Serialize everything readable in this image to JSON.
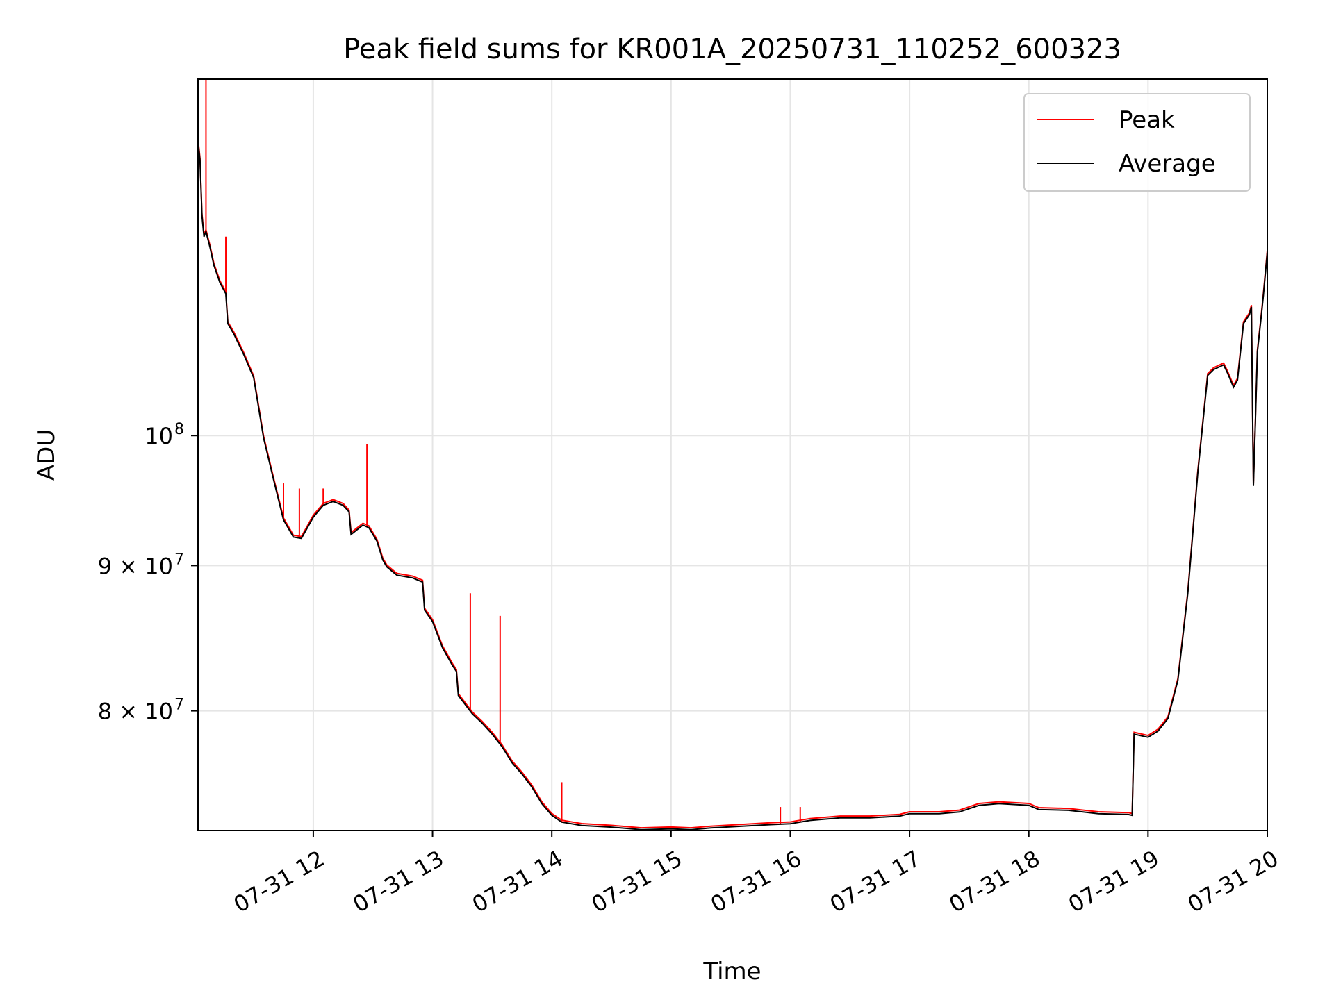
{
  "chart_data": {
    "type": "line",
    "title": "Peak field sums for KR001A_20250731_110252_600323",
    "xlabel": "Time",
    "ylabel": "ADU",
    "y_scale": "log",
    "grid": true,
    "legend_position": "top-right",
    "xlim": [
      "2025-07-31T11:02",
      "2025-07-31T20:00"
    ],
    "ylim": [
      72600000,
      133500000
    ],
    "x_ticks": [
      {
        "value": "2025-07-31T12:00",
        "label": "07-31 12"
      },
      {
        "value": "2025-07-31T13:00",
        "label": "07-31 13"
      },
      {
        "value": "2025-07-31T14:00",
        "label": "07-31 14"
      },
      {
        "value": "2025-07-31T15:00",
        "label": "07-31 15"
      },
      {
        "value": "2025-07-31T16:00",
        "label": "07-31 16"
      },
      {
        "value": "2025-07-31T17:00",
        "label": "07-31 17"
      },
      {
        "value": "2025-07-31T18:00",
        "label": "07-31 18"
      },
      {
        "value": "2025-07-31T19:00",
        "label": "07-31 19"
      },
      {
        "value": "2025-07-31T20:00",
        "label": "07-31 20"
      }
    ],
    "y_ticks": [
      {
        "value": 80000000,
        "base": "8 × 10",
        "exp": "7"
      },
      {
        "value": 90000000,
        "base": "9 × 10",
        "exp": "7"
      },
      {
        "value": 100000000,
        "base": "10",
        "exp": "8"
      }
    ],
    "series": [
      {
        "name": "Average",
        "color": "#000000",
        "points": [
          [
            "2025-07-31T11:02",
            127000000
          ],
          [
            "2025-07-31T11:03",
            125000000
          ],
          [
            "2025-07-31T11:04",
            119500000
          ],
          [
            "2025-07-31T11:05",
            117500000
          ],
          [
            "2025-07-31T11:06",
            118000000
          ],
          [
            "2025-07-31T11:08",
            116500000
          ],
          [
            "2025-07-31T11:10",
            114800000
          ],
          [
            "2025-07-31T11:13",
            113200000
          ],
          [
            "2025-07-31T11:16",
            112200000
          ],
          [
            "2025-07-31T11:17",
            109500000
          ],
          [
            "2025-07-31T11:20",
            108600000
          ],
          [
            "2025-07-31T11:25",
            106800000
          ],
          [
            "2025-07-31T11:30",
            104800000
          ],
          [
            "2025-07-31T11:35",
            99800000
          ],
          [
            "2025-07-31T11:40",
            96500000
          ],
          [
            "2025-07-31T11:45",
            93400000
          ],
          [
            "2025-07-31T11:50",
            92100000
          ],
          [
            "2025-07-31T11:54",
            92000000
          ],
          [
            "2025-07-31T12:00",
            93600000
          ],
          [
            "2025-07-31T12:05",
            94500000
          ],
          [
            "2025-07-31T12:10",
            94800000
          ],
          [
            "2025-07-31T12:15",
            94500000
          ],
          [
            "2025-07-31T12:18",
            94000000
          ],
          [
            "2025-07-31T12:19",
            92300000
          ],
          [
            "2025-07-31T12:25",
            93000000
          ],
          [
            "2025-07-31T12:28",
            92800000
          ],
          [
            "2025-07-31T12:32",
            91800000
          ],
          [
            "2025-07-31T12:35",
            90400000
          ],
          [
            "2025-07-31T12:37",
            89900000
          ],
          [
            "2025-07-31T12:42",
            89300000
          ],
          [
            "2025-07-31T12:50",
            89100000
          ],
          [
            "2025-07-31T12:55",
            88800000
          ],
          [
            "2025-07-31T12:56",
            86800000
          ],
          [
            "2025-07-31T13:00",
            86000000
          ],
          [
            "2025-07-31T13:05",
            84200000
          ],
          [
            "2025-07-31T13:10",
            83000000
          ],
          [
            "2025-07-31T13:12",
            82600000
          ],
          [
            "2025-07-31T13:13",
            81000000
          ],
          [
            "2025-07-31T13:20",
            79800000
          ],
          [
            "2025-07-31T13:25",
            79200000
          ],
          [
            "2025-07-31T13:30",
            78500000
          ],
          [
            "2025-07-31T13:35",
            77700000
          ],
          [
            "2025-07-31T13:40",
            76700000
          ],
          [
            "2025-07-31T13:45",
            76000000
          ],
          [
            "2025-07-31T13:50",
            75200000
          ],
          [
            "2025-07-31T13:55",
            74200000
          ],
          [
            "2025-07-31T14:00",
            73500000
          ],
          [
            "2025-07-31T14:05",
            73100000
          ],
          [
            "2025-07-31T14:15",
            72900000
          ],
          [
            "2025-07-31T14:30",
            72800000
          ],
          [
            "2025-07-31T14:45",
            72650000
          ],
          [
            "2025-07-31T15:00",
            72700000
          ],
          [
            "2025-07-31T15:10",
            72650000
          ],
          [
            "2025-07-31T15:20",
            72750000
          ],
          [
            "2025-07-31T15:35",
            72850000
          ],
          [
            "2025-07-31T15:50",
            72950000
          ],
          [
            "2025-07-31T16:00",
            73000000
          ],
          [
            "2025-07-31T16:10",
            73200000
          ],
          [
            "2025-07-31T16:25",
            73350000
          ],
          [
            "2025-07-31T16:40",
            73350000
          ],
          [
            "2025-07-31T16:55",
            73450000
          ],
          [
            "2025-07-31T17:00",
            73600000
          ],
          [
            "2025-07-31T17:15",
            73600000
          ],
          [
            "2025-07-31T17:25",
            73700000
          ],
          [
            "2025-07-31T17:35",
            74100000
          ],
          [
            "2025-07-31T17:45",
            74200000
          ],
          [
            "2025-07-31T18:00",
            74100000
          ],
          [
            "2025-07-31T18:05",
            73850000
          ],
          [
            "2025-07-31T18:20",
            73800000
          ],
          [
            "2025-07-31T18:35",
            73600000
          ],
          [
            "2025-07-31T18:50",
            73550000
          ],
          [
            "2025-07-31T18:52",
            73500000
          ],
          [
            "2025-07-31T18:53",
            78500000
          ],
          [
            "2025-07-31T19:00",
            78300000
          ],
          [
            "2025-07-31T19:05",
            78700000
          ],
          [
            "2025-07-31T19:10",
            79500000
          ],
          [
            "2025-07-31T19:15",
            82000000
          ],
          [
            "2025-07-31T19:20",
            88000000
          ],
          [
            "2025-07-31T19:25",
            97000000
          ],
          [
            "2025-07-31T19:30",
            105000000
          ],
          [
            "2025-07-31T19:33",
            105500000
          ],
          [
            "2025-07-31T19:38",
            105900000
          ],
          [
            "2025-07-31T19:40",
            105200000
          ],
          [
            "2025-07-31T19:43",
            104000000
          ],
          [
            "2025-07-31T19:45",
            104600000
          ],
          [
            "2025-07-31T19:48",
            109500000
          ],
          [
            "2025-07-31T19:51",
            110300000
          ],
          [
            "2025-07-31T19:52",
            111000000
          ],
          [
            "2025-07-31T19:53",
            96000000
          ],
          [
            "2025-07-31T19:54",
            101000000
          ],
          [
            "2025-07-31T19:55",
            107000000
          ],
          [
            "2025-07-31T19:57",
            110200000
          ],
          [
            "2025-07-31T19:58",
            112000000
          ],
          [
            "2025-07-31T20:00",
            116000000
          ]
        ]
      },
      {
        "name": "Peak",
        "color": "#ff0000",
        "spikes": [
          [
            "2025-07-31T11:06",
            133500000
          ],
          [
            "2025-07-31T11:16",
            117500000
          ],
          [
            "2025-07-31T11:45",
            96200000
          ],
          [
            "2025-07-31T11:53",
            95800000
          ],
          [
            "2025-07-31T12:05",
            95800000
          ],
          [
            "2025-07-31T12:27",
            99300000
          ],
          [
            "2025-07-31T13:19",
            88000000
          ],
          [
            "2025-07-31T13:34",
            86400000
          ],
          [
            "2025-07-31T14:05",
            75500000
          ],
          [
            "2025-07-31T15:55",
            74000000
          ],
          [
            "2025-07-31T16:05",
            74000000
          ]
        ]
      }
    ]
  }
}
